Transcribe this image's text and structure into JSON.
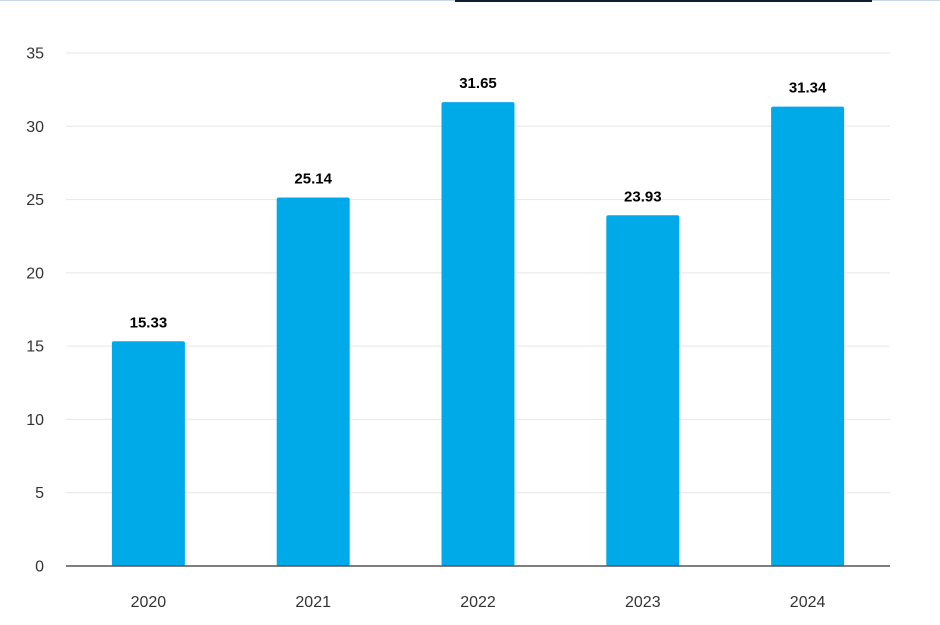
{
  "chart_data": {
    "type": "bar",
    "categories": [
      "2020",
      "2021",
      "2022",
      "2023",
      "2024"
    ],
    "values": [
      15.33,
      25.14,
      31.65,
      23.93,
      31.34
    ],
    "value_labels": [
      "15.33",
      "25.14",
      "31.65",
      "23.93",
      "31.34"
    ],
    "yticks": [
      "0",
      "5",
      "10",
      "15",
      "20",
      "25",
      "30",
      "35"
    ],
    "ylim": [
      0,
      35
    ],
    "bar_color": "#00A9E8",
    "grid": true,
    "title": "",
    "xlabel": "",
    "ylabel": ""
  }
}
